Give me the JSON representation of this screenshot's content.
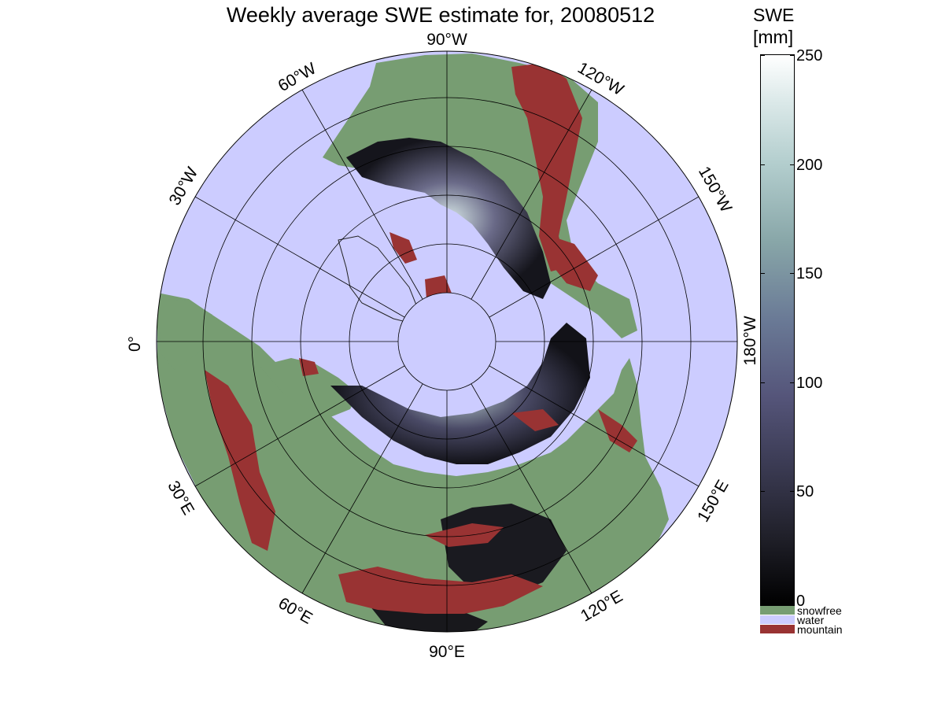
{
  "title": "Weekly average SWE estimate for, 20080512",
  "colorbar": {
    "label_line1": "SWE",
    "label_line2": "[mm]",
    "ticks": [
      "250",
      "200",
      "150",
      "100",
      "50",
      "0"
    ],
    "tick_values": [
      250,
      200,
      150,
      100,
      50,
      0
    ],
    "min": 0,
    "max": 250
  },
  "legend": [
    {
      "label": "snowfree",
      "color": "#779d72"
    },
    {
      "label": "water",
      "color": "#ccccff"
    },
    {
      "label": "mountain",
      "color": "#993333"
    }
  ],
  "longitude_labels": {
    "w90": "90°W",
    "w60": "60°W",
    "w30": "30°W",
    "zero": "0°",
    "e30": "30°E",
    "e60": "60°E",
    "e90": "90°E",
    "e120": "120°E",
    "e150": "150°E",
    "w180": "180°W",
    "w150": "150°W",
    "w120": "120°W"
  },
  "colors": {
    "ocean": "#ccccff",
    "land": "#779d72",
    "mountain": "#993333",
    "snow_low": "#101014",
    "snow_high": "#e8f2f2"
  }
}
